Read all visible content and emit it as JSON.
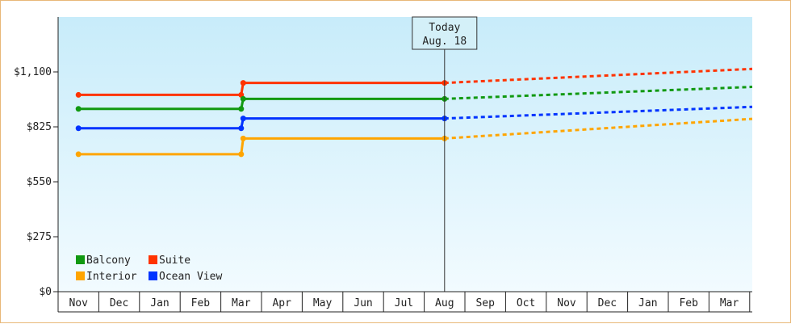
{
  "chart_data": {
    "type": "line",
    "title": "",
    "xlabel": "",
    "ylabel": "",
    "x_categories": [
      "Nov",
      "Dec",
      "Jan",
      "Feb",
      "Mar",
      "Apr",
      "May",
      "Jun",
      "Jul",
      "Aug",
      "Sep",
      "Oct",
      "Nov",
      "Dec",
      "Jan",
      "Feb",
      "Mar"
    ],
    "ylim": [
      0,
      1375
    ],
    "y_ticks": [
      {
        "value": 0,
        "label": "$0"
      },
      {
        "value": 275,
        "label": "$275"
      },
      {
        "value": 550,
        "label": "$550"
      },
      {
        "value": 825,
        "label": "$825"
      },
      {
        "value": 1100,
        "label": "$1,100"
      }
    ],
    "grid": false,
    "legend_position": "bottom-left",
    "today_marker": {
      "line1": "Today",
      "line2": "Aug. 18",
      "x": 9.0
    },
    "series": [
      {
        "name": "Suite",
        "color": "#ff3300",
        "actual": [
          [
            0,
            985
          ],
          [
            4,
            985
          ],
          [
            4.05,
            1045
          ],
          [
            9,
            1045
          ]
        ],
        "projected": [
          [
            9,
            1045
          ],
          [
            17.2,
            1115
          ]
        ]
      },
      {
        "name": "Balcony",
        "color": "#119911",
        "actual": [
          [
            0,
            915
          ],
          [
            4,
            915
          ],
          [
            4.05,
            965
          ],
          [
            9,
            965
          ]
        ],
        "projected": [
          [
            9,
            965
          ],
          [
            17.2,
            1025
          ]
        ]
      },
      {
        "name": "Ocean View",
        "color": "#0033ff",
        "actual": [
          [
            0,
            818
          ],
          [
            4,
            818
          ],
          [
            4.05,
            867
          ],
          [
            9,
            867
          ]
        ],
        "projected": [
          [
            9,
            867
          ],
          [
            17.2,
            925
          ]
        ]
      },
      {
        "name": "Interior",
        "color": "#ffa500",
        "actual": [
          [
            0,
            688
          ],
          [
            4,
            688
          ],
          [
            4.05,
            767
          ],
          [
            9,
            767
          ]
        ],
        "projected": [
          [
            9,
            767
          ],
          [
            17.2,
            865
          ]
        ]
      }
    ],
    "legend": [
      {
        "name": "Balcony",
        "color": "#119911"
      },
      {
        "name": "Suite",
        "color": "#ff3300"
      },
      {
        "name": "Interior",
        "color": "#ffa500"
      },
      {
        "name": "Ocean View",
        "color": "#0033ff"
      }
    ]
  }
}
